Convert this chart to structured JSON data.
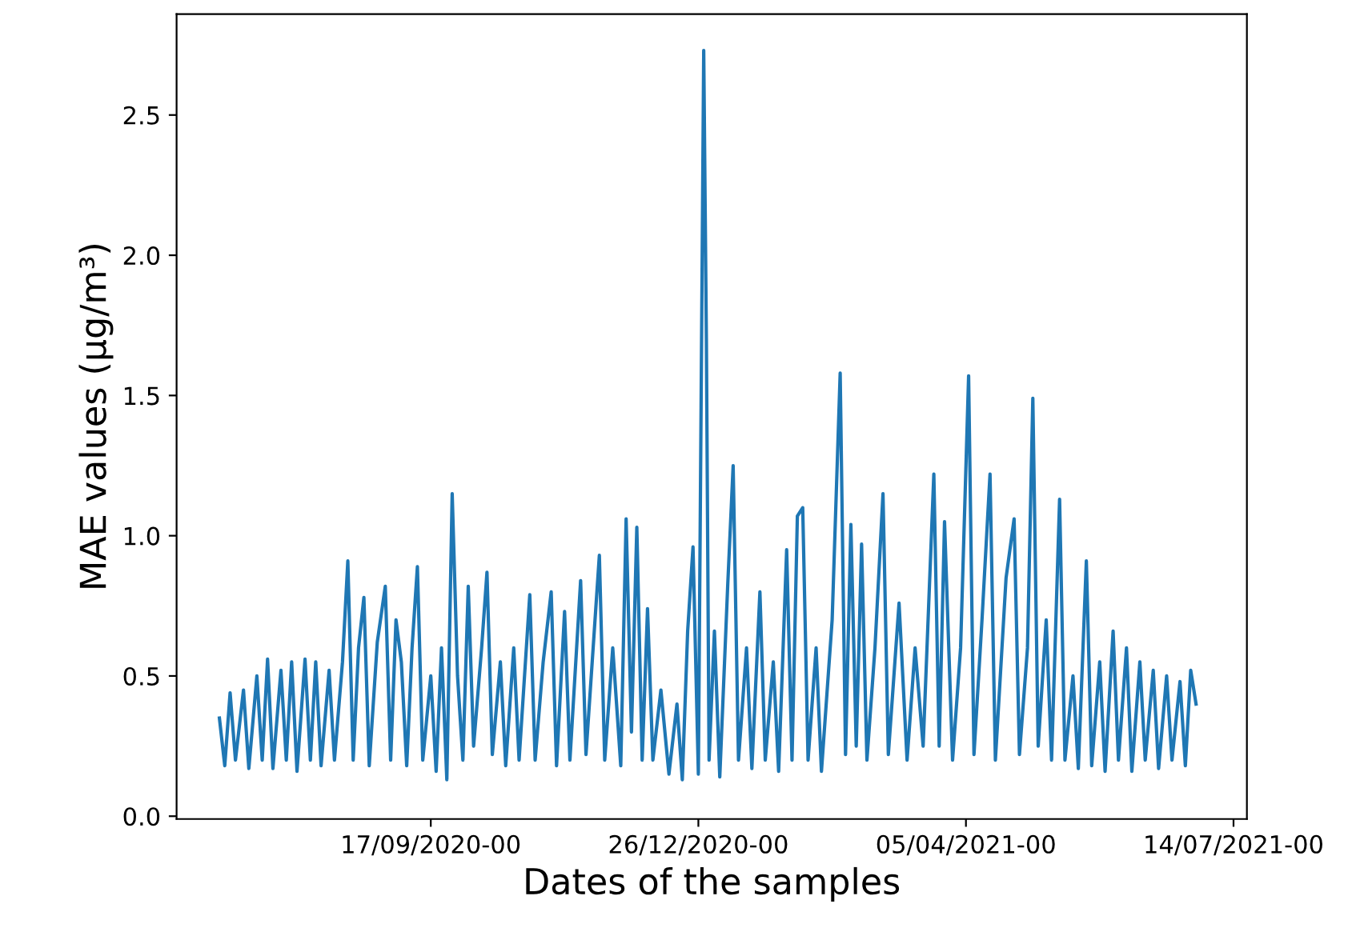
{
  "chart_data": {
    "type": "line",
    "xlabel": "Dates of the samples",
    "ylabel": "MAE values (μg/m³)",
    "x": [
      "2020-06-30",
      "2020-07-02",
      "2020-07-04",
      "2020-07-06",
      "2020-07-09",
      "2020-07-11",
      "2020-07-14",
      "2020-07-16",
      "2020-07-18",
      "2020-07-20",
      "2020-07-23",
      "2020-07-25",
      "2020-07-27",
      "2020-07-29",
      "2020-08-01",
      "2020-08-03",
      "2020-08-05",
      "2020-08-07",
      "2020-08-10",
      "2020-08-12",
      "2020-08-15",
      "2020-08-17",
      "2020-08-19",
      "2020-08-21",
      "2020-08-23",
      "2020-08-25",
      "2020-08-28",
      "2020-08-31",
      "2020-09-02",
      "2020-09-04",
      "2020-09-06",
      "2020-09-08",
      "2020-09-10",
      "2020-09-12",
      "2020-09-14",
      "2020-09-17",
      "2020-09-19",
      "2020-09-21",
      "2020-09-23",
      "2020-09-25",
      "2020-09-27",
      "2020-09-29",
      "2020-10-01",
      "2020-10-03",
      "2020-10-06",
      "2020-10-08",
      "2020-10-10",
      "2020-10-13",
      "2020-10-15",
      "2020-10-18",
      "2020-10-20",
      "2020-10-24",
      "2020-10-26",
      "2020-10-29",
      "2020-11-01",
      "2020-11-03",
      "2020-11-06",
      "2020-11-08",
      "2020-11-12",
      "2020-11-14",
      "2020-11-19",
      "2020-11-21",
      "2020-11-24",
      "2020-11-27",
      "2020-11-29",
      "2020-12-01",
      "2020-12-03",
      "2020-12-05",
      "2020-12-07",
      "2020-12-09",
      "2020-12-12",
      "2020-12-15",
      "2020-12-18",
      "2020-12-20",
      "2020-12-22",
      "2020-12-24",
      "2020-12-26",
      "2020-12-28",
      "2020-12-29",
      "2020-12-30",
      "2021-01-01",
      "2021-01-03",
      "2021-01-06",
      "2021-01-08",
      "2021-01-10",
      "2021-01-13",
      "2021-01-15",
      "2021-01-18",
      "2021-01-20",
      "2021-01-23",
      "2021-01-25",
      "2021-01-28",
      "2021-01-30",
      "2021-02-01",
      "2021-02-03",
      "2021-02-05",
      "2021-02-08",
      "2021-02-10",
      "2021-02-14",
      "2021-02-17",
      "2021-02-19",
      "2021-02-21",
      "2021-02-23",
      "2021-02-25",
      "2021-02-27",
      "2021-03-02",
      "2021-03-05",
      "2021-03-07",
      "2021-03-11",
      "2021-03-14",
      "2021-03-17",
      "2021-03-20",
      "2021-03-24",
      "2021-03-26",
      "2021-03-28",
      "2021-03-31",
      "2021-04-03",
      "2021-04-06",
      "2021-04-08",
      "2021-04-11",
      "2021-04-14",
      "2021-04-16",
      "2021-04-20",
      "2021-04-23",
      "2021-04-25",
      "2021-04-28",
      "2021-04-30",
      "2021-05-02",
      "2021-05-05",
      "2021-05-07",
      "2021-05-10",
      "2021-05-12",
      "2021-05-15",
      "2021-05-17",
      "2021-05-20",
      "2021-05-22",
      "2021-05-25",
      "2021-05-27",
      "2021-05-30",
      "2021-06-01",
      "2021-06-04",
      "2021-06-06",
      "2021-06-09",
      "2021-06-11",
      "2021-06-14",
      "2021-06-16",
      "2021-06-19",
      "2021-06-21",
      "2021-06-24",
      "2021-06-26",
      "2021-06-28",
      "2021-06-30"
    ],
    "series": [
      {
        "color": "#1f77b4",
        "values": [
          0.35,
          0.18,
          0.44,
          0.2,
          0.45,
          0.17,
          0.5,
          0.2,
          0.56,
          0.17,
          0.52,
          0.2,
          0.55,
          0.16,
          0.56,
          0.2,
          0.55,
          0.18,
          0.52,
          0.2,
          0.55,
          0.91,
          0.2,
          0.6,
          0.78,
          0.18,
          0.62,
          0.82,
          0.2,
          0.7,
          0.55,
          0.18,
          0.6,
          0.89,
          0.2,
          0.5,
          0.16,
          0.6,
          0.13,
          1.15,
          0.5,
          0.2,
          0.82,
          0.25,
          0.6,
          0.87,
          0.22,
          0.55,
          0.18,
          0.6,
          0.2,
          0.79,
          0.2,
          0.55,
          0.8,
          0.18,
          0.73,
          0.2,
          0.84,
          0.22,
          0.93,
          0.2,
          0.6,
          0.18,
          1.06,
          0.3,
          1.03,
          0.2,
          0.74,
          0.2,
          0.45,
          0.15,
          0.4,
          0.13,
          0.66,
          0.96,
          0.15,
          2.73,
          1.7,
          0.2,
          0.66,
          0.14,
          0.83,
          1.25,
          0.2,
          0.6,
          0.17,
          0.8,
          0.2,
          0.55,
          0.16,
          0.95,
          0.2,
          1.07,
          1.1,
          0.2,
          0.6,
          0.16,
          0.7,
          1.58,
          0.22,
          1.04,
          0.25,
          0.97,
          0.2,
          0.6,
          1.15,
          0.22,
          0.76,
          0.2,
          0.6,
          0.25,
          1.22,
          0.25,
          1.05,
          0.2,
          0.6,
          1.57,
          0.22,
          0.7,
          1.22,
          0.2,
          0.85,
          1.06,
          0.22,
          0.6,
          1.49,
          0.25,
          0.7,
          0.2,
          1.13,
          0.2,
          0.5,
          0.17,
          0.91,
          0.18,
          0.55,
          0.16,
          0.66,
          0.2,
          0.6,
          0.16,
          0.55,
          0.2,
          0.52,
          0.17,
          0.5,
          0.2,
          0.48,
          0.18,
          0.52,
          0.4
        ]
      }
    ],
    "xlim": [
      "2020-06-14",
      "2021-07-19"
    ],
    "xticks": [
      {
        "value": "2020-09-17",
        "label": "17/09/2020-00"
      },
      {
        "value": "2020-12-26",
        "label": "26/12/2020-00"
      },
      {
        "value": "2021-04-05",
        "label": "05/04/2021-00"
      },
      {
        "value": "2021-07-14",
        "label": "14/07/2021-00"
      }
    ],
    "ylim": [
      -0.01,
      2.86
    ],
    "yticks": [
      {
        "value": 0,
        "label": "0.0"
      },
      {
        "value": 0.5,
        "label": "0.5"
      },
      {
        "value": 1,
        "label": "1.0"
      },
      {
        "value": 1.5,
        "label": "1.5"
      },
      {
        "value": 2,
        "label": "2.0"
      },
      {
        "value": 2.5,
        "label": "2.5"
      }
    ],
    "grid": false,
    "legend": false,
    "marker": "none",
    "line_style": "solid"
  }
}
